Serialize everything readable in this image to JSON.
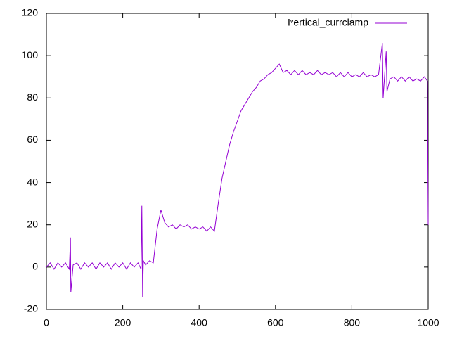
{
  "chart_data": {
    "type": "line",
    "x": [
      0,
      10,
      20,
      30,
      40,
      50,
      60,
      63,
      64,
      70,
      80,
      90,
      100,
      110,
      120,
      130,
      140,
      150,
      160,
      170,
      180,
      190,
      200,
      210,
      220,
      230,
      240,
      248,
      250,
      252,
      254,
      260,
      270,
      280,
      290,
      300,
      310,
      320,
      330,
      340,
      350,
      360,
      370,
      380,
      390,
      400,
      410,
      420,
      430,
      440,
      450,
      460,
      470,
      480,
      490,
      500,
      510,
      520,
      530,
      540,
      550,
      560,
      570,
      580,
      590,
      600,
      610,
      620,
      630,
      640,
      650,
      660,
      670,
      680,
      690,
      700,
      710,
      720,
      730,
      740,
      750,
      760,
      770,
      780,
      790,
      800,
      810,
      820,
      830,
      840,
      850,
      860,
      870,
      880,
      882,
      890,
      892,
      900,
      910,
      920,
      930,
      940,
      950,
      960,
      970,
      980,
      990,
      998,
      1000
    ],
    "series": [
      {
        "name": "Iᵛertical_currclamp",
        "color": "#9400d3",
        "values": [
          0,
          2,
          -1,
          2,
          0,
          2,
          -1,
          14,
          -12,
          1,
          2,
          -1,
          2,
          0,
          2,
          -1,
          2,
          0,
          2,
          -1,
          2,
          0,
          2,
          -1,
          2,
          0,
          2,
          -1,
          29,
          -14,
          3,
          1,
          3,
          2,
          18,
          27,
          21,
          19,
          20,
          18,
          20,
          19,
          20,
          18,
          19,
          18,
          19,
          17,
          19,
          17,
          30,
          42,
          50,
          58,
          64,
          69,
          74,
          77,
          80,
          83,
          85,
          88,
          89,
          91,
          92,
          94,
          96,
          92,
          93,
          91,
          93,
          91,
          93,
          91,
          92,
          91,
          93,
          91,
          92,
          91,
          92,
          90,
          92,
          90,
          92,
          90,
          91,
          90,
          92,
          90,
          91,
          90,
          91,
          106,
          80,
          102,
          83,
          89,
          90,
          88,
          90,
          88,
          90,
          88,
          89,
          88,
          90,
          88,
          20
        ]
      }
    ],
    "xlim": [
      0,
      1000
    ],
    "xticks": [
      0,
      200,
      400,
      600,
      800,
      1000
    ],
    "ylim": [
      -20,
      120
    ],
    "yticks": [
      -20,
      0,
      20,
      40,
      60,
      80,
      100,
      120
    ],
    "grid": false,
    "legend": "top-right"
  }
}
